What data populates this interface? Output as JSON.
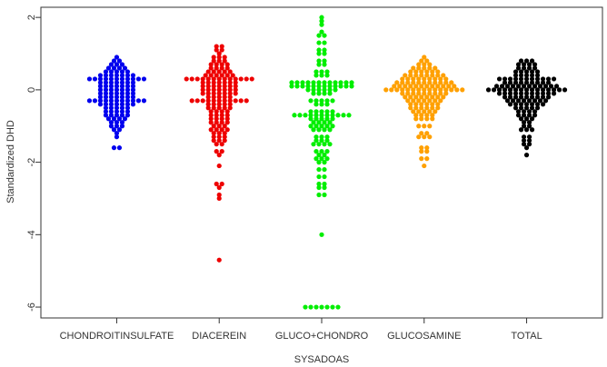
{
  "chart_data": {
    "type": "beeswarm",
    "xlabel": "SYSADOAS",
    "ylabel": "Standardized DHD",
    "categories": [
      "CHONDROITINSULFATE",
      "DIACEREIN",
      "GLUCO+CHONDRO",
      "GLUCOSAMINE",
      "TOTAL"
    ],
    "colors": [
      "#0000ee",
      "#ee0000",
      "#00ee00",
      "#ffa000",
      "#000000"
    ],
    "ylim": [
      -6.3,
      2.28
    ],
    "yticks": [
      -6,
      -4,
      -2,
      0,
      2
    ],
    "values": [
      [
        0.9,
        0.8,
        0.8,
        0.7,
        0.7,
        0.7,
        0.6,
        0.6,
        0.6,
        0.6,
        0.5,
        0.5,
        0.5,
        0.5,
        0.5,
        0.4,
        0.4,
        0.4,
        0.4,
        0.4,
        0.4,
        0.4,
        0.3,
        0.3,
        0.3,
        0.3,
        0.3,
        0.3,
        0.3,
        0.3,
        0.3,
        0.3,
        0.3,
        0.2,
        0.2,
        0.2,
        0.2,
        0.2,
        0.2,
        0.2,
        0.1,
        0.1,
        0.1,
        0.1,
        0.1,
        0.1,
        0.1,
        0,
        0,
        0,
        0,
        0,
        0,
        0,
        -0.1,
        -0.1,
        -0.1,
        -0.1,
        -0.1,
        -0.1,
        -0.1,
        -0.2,
        -0.2,
        -0.2,
        -0.2,
        -0.2,
        -0.2,
        -0.2,
        -0.3,
        -0.3,
        -0.3,
        -0.3,
        -0.3,
        -0.3,
        -0.3,
        -0.3,
        -0.3,
        -0.3,
        -0.3,
        -0.4,
        -0.4,
        -0.4,
        -0.4,
        -0.4,
        -0.4,
        -0.4,
        -0.5,
        -0.5,
        -0.5,
        -0.5,
        -0.5,
        -0.6,
        -0.6,
        -0.6,
        -0.6,
        -0.6,
        -0.7,
        -0.7,
        -0.7,
        -0.7,
        -0.7,
        -0.8,
        -0.8,
        -0.8,
        -0.8,
        -0.9,
        -0.9,
        -0.9,
        -1,
        -1,
        -1,
        -1.1,
        -1.1,
        -1.2,
        -1.3,
        -1.6,
        -1.6
      ],
      [
        1.2,
        1.2,
        1.1,
        1.1,
        1,
        0.9,
        0.9,
        0.9,
        0.8,
        0.8,
        0.8,
        0.7,
        0.7,
        0.7,
        0.7,
        0.6,
        0.6,
        0.6,
        0.6,
        0.5,
        0.5,
        0.5,
        0.5,
        0.5,
        0.4,
        0.4,
        0.4,
        0.4,
        0.4,
        0.4,
        0.3,
        0.3,
        0.3,
        0.3,
        0.3,
        0.3,
        0.3,
        0.3,
        0.3,
        0.3,
        0.3,
        0.3,
        0.3,
        0.2,
        0.2,
        0.2,
        0.2,
        0.2,
        0.2,
        0.2,
        0.1,
        0.1,
        0.1,
        0.1,
        0.1,
        0.1,
        0.1,
        0,
        0,
        0,
        0,
        0,
        0,
        0,
        -0.1,
        -0.1,
        -0.1,
        -0.1,
        -0.1,
        -0.1,
        -0.1,
        -0.2,
        -0.2,
        -0.2,
        -0.2,
        -0.2,
        -0.3,
        -0.3,
        -0.3,
        -0.3,
        -0.3,
        -0.3,
        -0.3,
        -0.3,
        -0.3,
        -0.3,
        -0.3,
        -0.4,
        -0.4,
        -0.4,
        -0.4,
        -0.4,
        -0.5,
        -0.5,
        -0.5,
        -0.5,
        -0.5,
        -0.6,
        -0.6,
        -0.6,
        -0.6,
        -0.7,
        -0.7,
        -0.7,
        -0.7,
        -0.8,
        -0.8,
        -0.8,
        -0.8,
        -0.9,
        -0.9,
        -0.9,
        -0.9,
        -1,
        -1,
        -1,
        -1.1,
        -1.1,
        -1.1,
        -1.1,
        -1.2,
        -1.2,
        -1.2,
        -1.3,
        -1.3,
        -1.3,
        -1.4,
        -1.4,
        -1.4,
        -1.5,
        -1.5,
        -1.7,
        -1.7,
        -1.8,
        -2.1,
        -2.6,
        -2.6,
        -2.7,
        -2.9,
        -3,
        -4.7
      ],
      [
        2,
        1.9,
        1.8,
        1.6,
        1.5,
        1.5,
        1.3,
        1.3,
        1.1,
        1.1,
        1,
        1,
        0.8,
        0.8,
        0.7,
        0.7,
        0.5,
        0.5,
        0.5,
        0.4,
        0.4,
        0.4,
        0.2,
        0.2,
        0.2,
        0.2,
        0.2,
        0.2,
        0.2,
        0.2,
        0.2,
        0.2,
        0.2,
        0.2,
        0.1,
        0.1,
        0.1,
        0.1,
        0.1,
        0.1,
        0.1,
        0.1,
        0.1,
        0.1,
        0.1,
        0.1,
        0,
        0,
        0,
        0,
        0,
        0,
        -0.1,
        -0.1,
        -0.1,
        -0.1,
        -0.3,
        -0.3,
        -0.3,
        -0.3,
        -0.3,
        -0.4,
        -0.4,
        -0.4,
        -0.6,
        -0.6,
        -0.6,
        -0.6,
        -0.6,
        -0.7,
        -0.7,
        -0.7,
        -0.7,
        -0.7,
        -0.7,
        -0.7,
        -0.7,
        -0.7,
        -0.7,
        -0.7,
        -0.8,
        -0.8,
        -0.8,
        -0.8,
        -0.8,
        -0.9,
        -0.9,
        -0.9,
        -0.9,
        -1,
        -1,
        -1,
        -1,
        -1,
        -1.1,
        -1.1,
        -1.1,
        -1.1,
        -1.3,
        -1.3,
        -1.3,
        -1.4,
        -1.4,
        -1.4,
        -1.5,
        -1.5,
        -1.5,
        -1.5,
        -1.7,
        -1.7,
        -1.7,
        -1.8,
        -1.8,
        -1.9,
        -1.9,
        -1.9,
        -2,
        -2,
        -2.2,
        -2.2,
        -2.4,
        -2.4,
        -2.6,
        -2.6,
        -2.7,
        -2.7,
        -2.9,
        -2.9,
        -4,
        -6,
        -6,
        -6,
        -6,
        -6,
        -6,
        -6
      ],
      [
        0.9,
        0.8,
        0.8,
        0.7,
        0.7,
        0.7,
        0.6,
        0.6,
        0.6,
        0.6,
        0.6,
        0.5,
        0.5,
        0.5,
        0.5,
        0.5,
        0.5,
        0.4,
        0.4,
        0.4,
        0.4,
        0.4,
        0.4,
        0.4,
        0.4,
        0.3,
        0.3,
        0.3,
        0.3,
        0.3,
        0.3,
        0.3,
        0.3,
        0.3,
        0.2,
        0.2,
        0.2,
        0.2,
        0.2,
        0.2,
        0.2,
        0.2,
        0.2,
        0.2,
        0.2,
        0.1,
        0.1,
        0.1,
        0.1,
        0.1,
        0.1,
        0.1,
        0.1,
        0.1,
        0.1,
        0.1,
        0.1,
        0,
        0,
        0,
        0,
        0,
        0,
        0,
        0,
        0,
        0,
        0,
        0,
        0,
        0,
        0,
        -0.1,
        -0.1,
        -0.1,
        -0.1,
        -0.1,
        -0.1,
        -0.1,
        -0.1,
        -0.1,
        -0.2,
        -0.2,
        -0.2,
        -0.2,
        -0.2,
        -0.2,
        -0.2,
        -0.2,
        -0.3,
        -0.3,
        -0.3,
        -0.3,
        -0.3,
        -0.3,
        -0.3,
        -0.4,
        -0.4,
        -0.4,
        -0.4,
        -0.4,
        -0.4,
        -0.5,
        -0.5,
        -0.5,
        -0.5,
        -0.5,
        -0.5,
        -0.6,
        -0.6,
        -0.6,
        -0.6,
        -0.6,
        -0.7,
        -0.7,
        -0.7,
        -0.7,
        -0.8,
        -0.8,
        -0.8,
        -0.8,
        -1,
        -1,
        -1,
        -1.2,
        -1.2,
        -1.3,
        -1.3,
        -1.3,
        -1.6,
        -1.6,
        -1.7,
        -1.7,
        -1.9,
        -1.9,
        -2.1
      ],
      [
        0.8,
        0.8,
        0.8,
        0.7,
        0.7,
        0.7,
        0.7,
        0.6,
        0.6,
        0.6,
        0.6,
        0.5,
        0.5,
        0.5,
        0.5,
        0.5,
        0.4,
        0.4,
        0.4,
        0.4,
        0.4,
        0.3,
        0.3,
        0.3,
        0.3,
        0.3,
        0.3,
        0.3,
        0.3,
        0.3,
        0.3,
        0.3,
        0.2,
        0.2,
        0.2,
        0.2,
        0.2,
        0.2,
        0.2,
        0.2,
        0.2,
        0.1,
        0.1,
        0.1,
        0.1,
        0.1,
        0.1,
        0.1,
        0.1,
        0.1,
        0.1,
        0.1,
        0.1,
        0,
        0,
        0,
        0,
        0,
        0,
        0,
        0,
        0,
        0,
        0,
        0,
        0,
        0,
        0,
        -0.1,
        -0.1,
        -0.1,
        -0.1,
        -0.1,
        -0.1,
        -0.1,
        -0.1,
        -0.1,
        -0.1,
        -0.1,
        -0.2,
        -0.2,
        -0.2,
        -0.2,
        -0.2,
        -0.2,
        -0.2,
        -0.2,
        -0.2,
        -0.3,
        -0.3,
        -0.3,
        -0.3,
        -0.3,
        -0.3,
        -0.3,
        -0.3,
        -0.4,
        -0.4,
        -0.4,
        -0.4,
        -0.4,
        -0.4,
        -0.4,
        -0.5,
        -0.5,
        -0.5,
        -0.5,
        -0.5,
        -0.6,
        -0.6,
        -0.6,
        -0.6,
        -0.7,
        -0.7,
        -0.7,
        -0.7,
        -0.8,
        -0.8,
        -0.8,
        -0.9,
        -0.9,
        -1,
        -1,
        -1.1,
        -1.1,
        -1.1,
        -1.3,
        -1.3,
        -1.4,
        -1.4,
        -1.5,
        -1.5,
        -1.6,
        -1.8
      ]
    ]
  }
}
